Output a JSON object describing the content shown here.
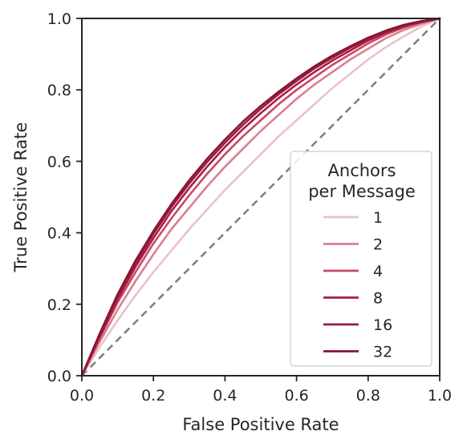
{
  "chart_data": {
    "type": "line",
    "title": "",
    "xlabel": "False Positive Rate",
    "ylabel": "True Positive Rate",
    "xlim": [
      0.0,
      1.0
    ],
    "ylim": [
      0.0,
      1.0
    ],
    "xticks": [
      "0.0",
      "0.2",
      "0.4",
      "0.6",
      "0.8",
      "1.0"
    ],
    "yticks": [
      "0.0",
      "0.2",
      "0.4",
      "0.6",
      "0.8",
      "1.0"
    ],
    "grid": false,
    "legend": {
      "title_line1": "Anchors",
      "title_line2": "per Message",
      "placement": "lower-right"
    },
    "reference_line": {
      "x": [
        0.0,
        1.0
      ],
      "y": [
        0.0,
        1.0
      ],
      "style": "dashed",
      "color": "#808080"
    },
    "x": [
      0.0,
      0.05,
      0.1,
      0.15,
      0.2,
      0.25,
      0.3,
      0.35,
      0.4,
      0.45,
      0.5,
      0.55,
      0.6,
      0.65,
      0.7,
      0.75,
      0.8,
      0.85,
      0.9,
      0.95,
      1.0
    ],
    "series": [
      {
        "name": "1",
        "color": "#ecc0cb",
        "values": [
          0.0,
          0.08,
          0.155,
          0.225,
          0.29,
          0.35,
          0.41,
          0.465,
          0.52,
          0.57,
          0.62,
          0.67,
          0.715,
          0.76,
          0.805,
          0.845,
          0.885,
          0.92,
          0.95,
          0.978,
          1.0
        ]
      },
      {
        "name": "2",
        "color": "#dc7e91",
        "values": [
          0.0,
          0.095,
          0.185,
          0.265,
          0.34,
          0.41,
          0.47,
          0.53,
          0.585,
          0.635,
          0.685,
          0.73,
          0.775,
          0.815,
          0.85,
          0.885,
          0.915,
          0.945,
          0.968,
          0.985,
          1.0
        ]
      },
      {
        "name": "4",
        "color": "#c84963",
        "values": [
          0.0,
          0.105,
          0.205,
          0.29,
          0.37,
          0.44,
          0.505,
          0.565,
          0.62,
          0.67,
          0.715,
          0.76,
          0.8,
          0.835,
          0.87,
          0.9,
          0.93,
          0.955,
          0.975,
          0.99,
          1.0
        ]
      },
      {
        "name": "8",
        "color": "#ac1c40",
        "values": [
          0.0,
          0.11,
          0.215,
          0.305,
          0.385,
          0.46,
          0.525,
          0.585,
          0.64,
          0.69,
          0.735,
          0.777,
          0.815,
          0.85,
          0.882,
          0.91,
          0.938,
          0.96,
          0.978,
          0.99,
          1.0
        ]
      },
      {
        "name": "16",
        "color": "#9a1a3e",
        "values": [
          0.0,
          0.115,
          0.222,
          0.315,
          0.397,
          0.472,
          0.538,
          0.598,
          0.652,
          0.702,
          0.747,
          0.788,
          0.825,
          0.86,
          0.89,
          0.918,
          0.943,
          0.964,
          0.98,
          0.992,
          1.0
        ]
      },
      {
        "name": "32",
        "color": "#861733",
        "values": [
          0.0,
          0.118,
          0.228,
          0.322,
          0.405,
          0.48,
          0.547,
          0.607,
          0.661,
          0.711,
          0.755,
          0.795,
          0.832,
          0.866,
          0.896,
          0.922,
          0.946,
          0.966,
          0.982,
          0.993,
          1.0
        ]
      }
    ]
  }
}
